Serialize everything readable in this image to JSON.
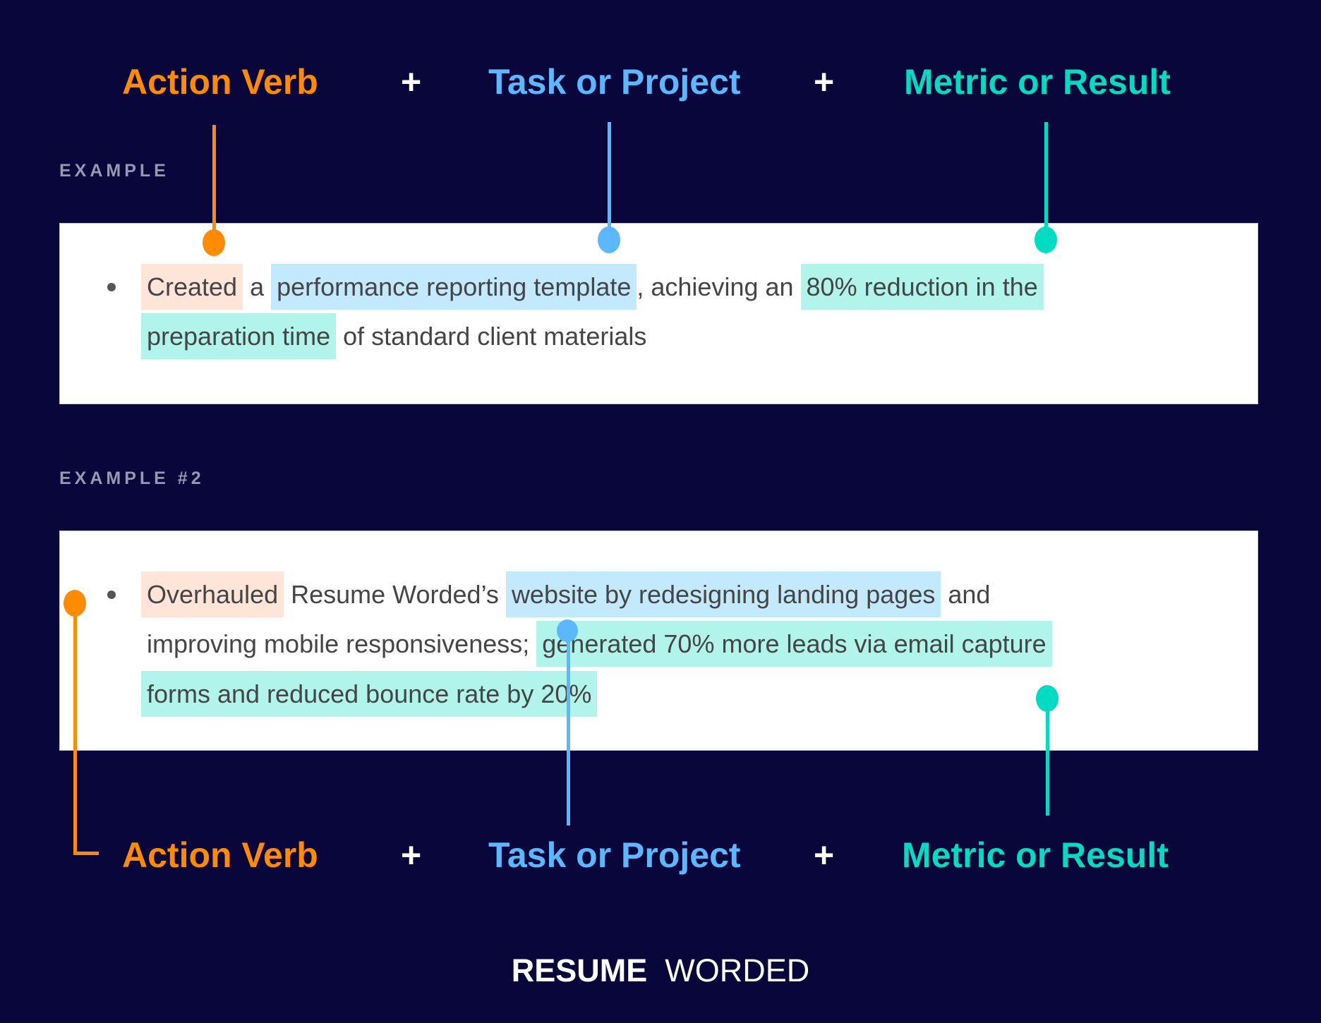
{
  "colors": {
    "background": "#08063a",
    "action_verb": "#ff8c00",
    "task_or_project": "#5bb8ff",
    "metric_or_result": "#00dcc4"
  },
  "formula": {
    "action_verb": "Action Verb",
    "plus": "+",
    "task_or_project": "Task or Project",
    "metric_or_result": "Metric or Result"
  },
  "example1": {
    "label": "EXAMPLE",
    "action": "Created",
    "t1": " a ",
    "task": "performance reporting template",
    "t2": ", achieving an ",
    "metric_a": "80% reduction in the",
    "metric_b": "preparation time",
    "t3": " of standard client materials"
  },
  "example2": {
    "label": "EXAMPLE #2",
    "action": "Overhauled",
    "t1": " Resume Worded’s ",
    "task": "website by redesigning landing pages",
    "t2": " and",
    "t3": "improving mobile responsiveness; ",
    "metric_a": "generated 70% more leads via email capture",
    "metric_b": "forms and reduced bounce rate by 20%"
  },
  "logo": {
    "bold": "RESUME",
    "light": "WORDED"
  }
}
